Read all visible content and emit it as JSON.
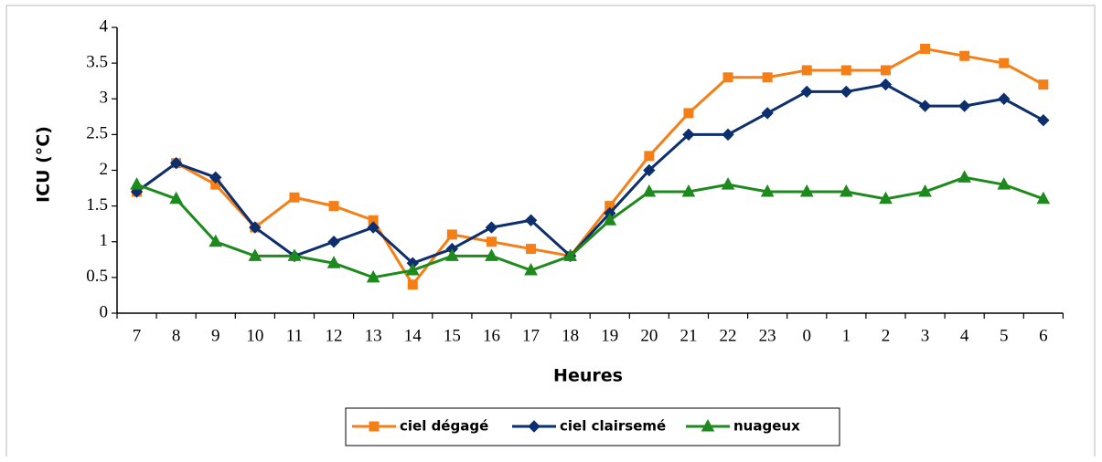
{
  "chart_data": {
    "type": "line",
    "x_label": "Heures",
    "y_label": "ICU (°C)",
    "categories": [
      "7",
      "8",
      "9",
      "10",
      "11",
      "12",
      "13",
      "14",
      "15",
      "16",
      "17",
      "18",
      "19",
      "20",
      "21",
      "22",
      "23",
      "0",
      "1",
      "2",
      "3",
      "4",
      "5",
      "6"
    ],
    "series": [
      {
        "name": "ciel dégagé",
        "color": "#f57f17",
        "marker": "square",
        "values": [
          1.7,
          2.1,
          1.8,
          1.2,
          1.62,
          1.5,
          1.3,
          0.4,
          1.1,
          1.0,
          0.9,
          0.8,
          1.5,
          2.2,
          2.8,
          3.3,
          3.3,
          3.4,
          3.4,
          3.4,
          3.7,
          3.6,
          3.5,
          3.2
        ]
      },
      {
        "name": "ciel clairsemé",
        "color": "#0d2f6e",
        "marker": "diamond",
        "values": [
          1.7,
          2.1,
          1.9,
          1.2,
          0.8,
          1.0,
          1.2,
          0.7,
          0.9,
          1.2,
          1.3,
          0.8,
          1.4,
          2.0,
          2.5,
          2.5,
          2.8,
          3.1,
          3.1,
          3.2,
          2.9,
          2.9,
          3.0,
          2.7
        ]
      },
      {
        "name": "nuageux",
        "color": "#1e8a1e",
        "marker": "triangle",
        "values": [
          1.8,
          1.6,
          1.0,
          0.8,
          0.8,
          0.7,
          0.5,
          0.6,
          0.8,
          0.8,
          0.6,
          0.8,
          1.3,
          1.7,
          1.7,
          1.8,
          1.7,
          1.7,
          1.7,
          1.6,
          1.7,
          1.9,
          1.8,
          1.6
        ]
      }
    ],
    "ylim": [
      0,
      4
    ],
    "yticks": [
      0,
      0.5,
      1,
      1.5,
      2,
      2.5,
      3,
      3.5,
      4
    ]
  }
}
